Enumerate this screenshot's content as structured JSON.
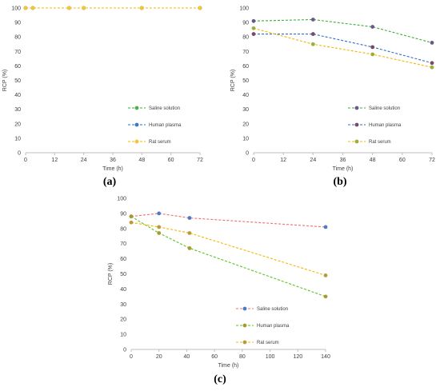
{
  "captions": [
    "(a)",
    "(b)",
    "(c)"
  ],
  "chart_data": [
    {
      "type": "line",
      "xlabel": "Time (h)",
      "ylabel": "RCP (%)",
      "xlim": [
        0,
        72
      ],
      "ylim": [
        0,
        100
      ],
      "xticks": [
        0,
        12,
        24,
        36,
        48,
        60,
        72
      ],
      "yticks": [
        0,
        10,
        20,
        30,
        40,
        50,
        60,
        70,
        80,
        90,
        100
      ],
      "line_style": "dashed",
      "legend_position": "bottom-right",
      "series": [
        {
          "name": "Saline solution",
          "color": "#3fae3f",
          "marker_color": "#4fb04f",
          "x": [
            0,
            3,
            18,
            24,
            48,
            72
          ],
          "y": [
            100,
            100,
            100,
            100,
            100,
            100
          ]
        },
        {
          "name": "Human plasma",
          "color": "#2f6fc2",
          "marker_color": "#3b78c8",
          "x": [
            0,
            3,
            18,
            24,
            48,
            72
          ],
          "y": [
            100,
            100,
            100,
            100,
            100,
            100
          ]
        },
        {
          "name": "Rat serum",
          "color": "#f2b705",
          "marker_color": "#f7c531",
          "x": [
            0,
            3,
            18,
            24,
            48,
            72
          ],
          "y": [
            100,
            100,
            100,
            100,
            100,
            100
          ]
        }
      ]
    },
    {
      "type": "line",
      "xlabel": "Time (h)",
      "ylabel": "RCP (%)",
      "xlim": [
        0,
        72
      ],
      "ylim": [
        0,
        100
      ],
      "xticks": [
        0,
        12,
        24,
        36,
        48,
        60,
        72
      ],
      "yticks": [
        0,
        10,
        20,
        30,
        40,
        50,
        60,
        70,
        80,
        90,
        100
      ],
      "line_style": "dashed",
      "legend_position": "bottom-right",
      "series": [
        {
          "name": "Saline solution",
          "color": "#3fae3f",
          "marker_color": "#6a5a8c",
          "x": [
            0,
            24,
            48,
            72
          ],
          "y": [
            91,
            92,
            87,
            76
          ]
        },
        {
          "name": "Human plasma",
          "color": "#2f6fc2",
          "marker_color": "#7a4a6a",
          "x": [
            0,
            24,
            48,
            72
          ],
          "y": [
            82,
            82,
            73,
            62
          ]
        },
        {
          "name": "Rat serum",
          "color": "#f2b705",
          "marker_color": "#9bb03a",
          "x": [
            0,
            24,
            48,
            72
          ],
          "y": [
            86,
            75,
            68,
            59
          ]
        }
      ]
    },
    {
      "type": "line",
      "xlabel": "Time (h)",
      "ylabel": "RCP (%)",
      "xlim": [
        0,
        140
      ],
      "ylim": [
        0,
        100
      ],
      "xticks": [
        0,
        20,
        40,
        60,
        80,
        100,
        120,
        140
      ],
      "yticks": [
        0,
        10,
        20,
        30,
        40,
        50,
        60,
        70,
        80,
        90,
        100
      ],
      "line_style": "dashed",
      "legend_position": "bottom-right",
      "series": [
        {
          "name": "Saline solution",
          "color": "#f07070",
          "marker_color": "#4a7dc4",
          "x": [
            0,
            20,
            42,
            140
          ],
          "y": [
            88,
            90,
            87,
            81
          ]
        },
        {
          "name": "Human plasma",
          "color": "#5cc21f",
          "marker_color": "#a89a30",
          "x": [
            0,
            20,
            42,
            140
          ],
          "y": [
            88,
            77,
            67,
            35
          ]
        },
        {
          "name": "Rat serum",
          "color": "#f2b705",
          "marker_color": "#b89a3a",
          "x": [
            0,
            20,
            42,
            140
          ],
          "y": [
            84,
            81,
            77,
            49
          ]
        }
      ]
    }
  ]
}
